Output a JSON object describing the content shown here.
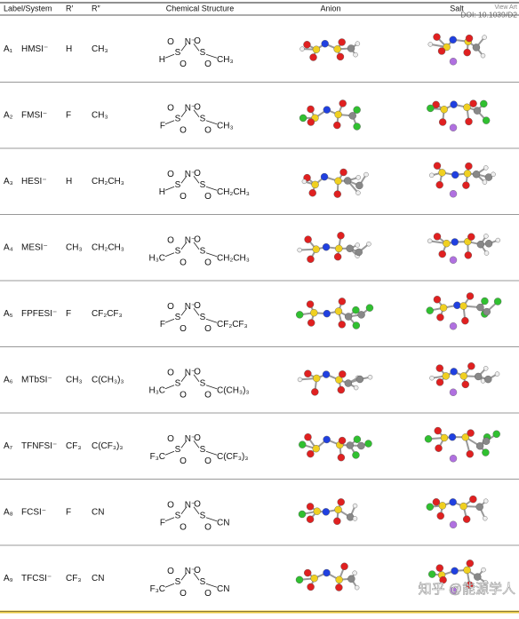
{
  "header": {
    "label": "Label/System",
    "r1": "R′",
    "r2": "R″",
    "structure": "Chemical Structure",
    "anion": "Anion",
    "salt": "Salt",
    "view": "View Art",
    "doi": "DOI: 10.1039/D2"
  },
  "atoms": {
    "o": "O",
    "s": "S",
    "n": "N⁻"
  },
  "rows": [
    {
      "label": "A₁",
      "name": "HMSI⁻",
      "r1": "H",
      "r2": "CH₃",
      "left": "H",
      "right": "CH₃"
    },
    {
      "label": "A₂",
      "name": "FMSI⁻",
      "r1": "F",
      "r2": "CH₃",
      "left": "F",
      "right": "CH₃"
    },
    {
      "label": "A₃",
      "name": "HESI⁻",
      "r1": "H",
      "r2": "CH₂CH₃",
      "left": "H",
      "right": "CH₂CH₃"
    },
    {
      "label": "A₄",
      "name": "MESI⁻",
      "r1": "CH₃",
      "r2": "CH₂CH₃",
      "left": "H₃C",
      "right": "CH₂CH₃"
    },
    {
      "label": "A₅",
      "name": "FPFESI⁻",
      "r1": "F",
      "r2": "CF₂CF₃",
      "left": "F",
      "right": "CF₂CF₃"
    },
    {
      "label": "A₆",
      "name": "MTbSI⁻",
      "r1": "CH₃",
      "r2": "C(CH₃)₃",
      "left": "H₃C",
      "right": "C(CH₃)₃"
    },
    {
      "label": "A₇",
      "name": "TFNFSI⁻",
      "r1": "CF₃",
      "r2": "C(CF₃)₃",
      "left": "F₃C",
      "right": "C(CF₃)₃"
    },
    {
      "label": "A₈",
      "name": "FCSI⁻",
      "r1": "F",
      "r2": "CN",
      "left": "F",
      "right": "CN"
    },
    {
      "label": "A₉",
      "name": "TFCSI⁻",
      "r1": "CF₃",
      "r2": "CN",
      "left": "F₃C",
      "right": "CN"
    }
  ],
  "watermark": "知乎 @能源学人"
}
